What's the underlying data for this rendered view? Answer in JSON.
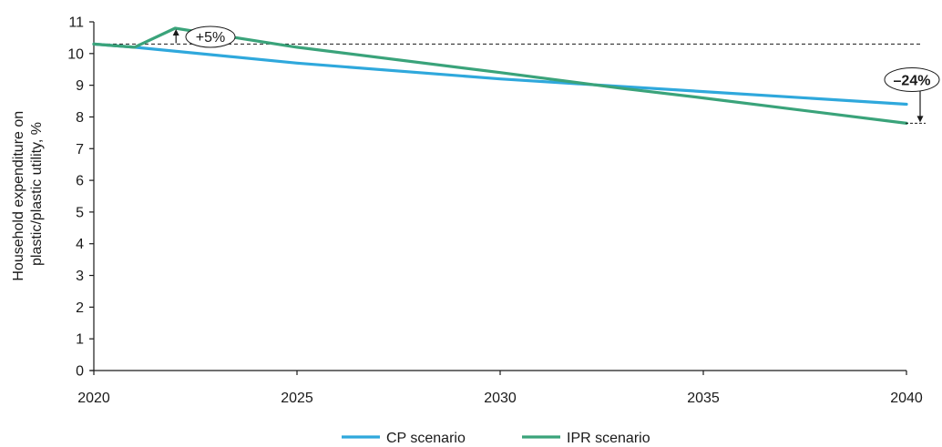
{
  "chart_data": {
    "type": "line",
    "title": "",
    "xlabel": "",
    "ylabel_lines": [
      "Household expenditure on",
      "plastic/plastic utility, %"
    ],
    "xlim": [
      2020,
      2040
    ],
    "ylim": [
      0,
      11
    ],
    "x_ticks": [
      2020,
      2025,
      2030,
      2035,
      2040
    ],
    "y_ticks": [
      0,
      1,
      2,
      3,
      4,
      5,
      6,
      7,
      8,
      9,
      10,
      11
    ],
    "grid": false,
    "legend_position": "bottom-center",
    "series": [
      {
        "name": "CP scenario",
        "color": "#2fa8dc",
        "points": [
          [
            2020,
            10.3
          ],
          [
            2021,
            10.2
          ],
          [
            2025,
            9.7
          ],
          [
            2030,
            9.2
          ],
          [
            2035,
            8.8
          ],
          [
            2040,
            8.4
          ]
        ]
      },
      {
        "name": "IPR scenario",
        "color": "#3aa37a",
        "points": [
          [
            2020,
            10.3
          ],
          [
            2021,
            10.2
          ],
          [
            2022,
            10.8
          ],
          [
            2025,
            10.2
          ],
          [
            2030,
            9.4
          ],
          [
            2033,
            8.9
          ],
          [
            2035,
            8.6
          ],
          [
            2040,
            7.8
          ]
        ]
      }
    ],
    "reference_line": {
      "y": 10.3,
      "style": "dashed"
    },
    "annotations": [
      {
        "text": "+5%",
        "x": 2022,
        "y_from": 10.3,
        "y_to": 10.8
      },
      {
        "text": "–24%",
        "x": 2040,
        "y_from": 10.3,
        "y_to": 7.8
      }
    ]
  }
}
